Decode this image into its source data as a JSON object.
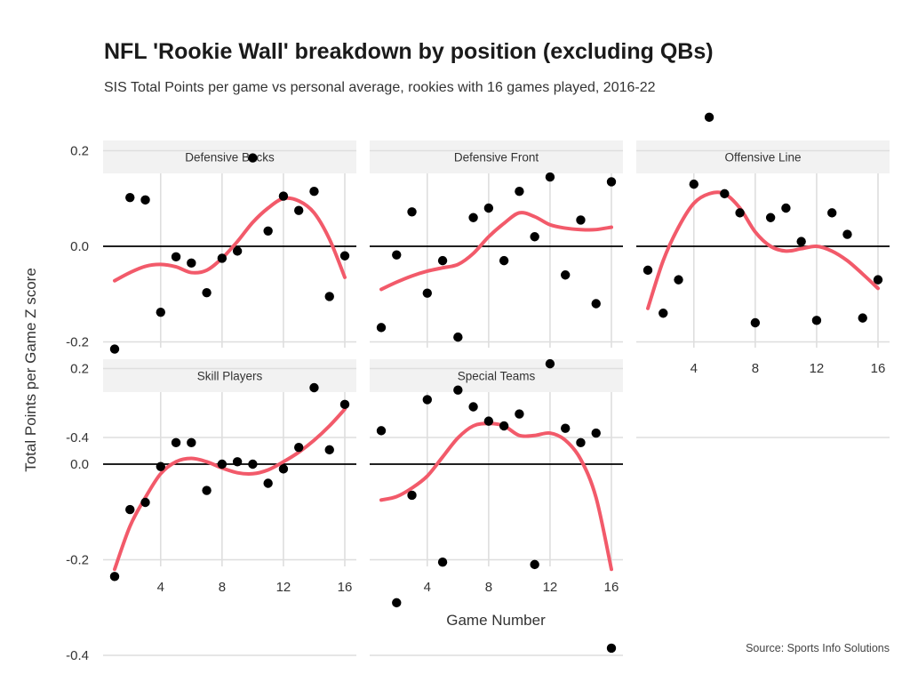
{
  "title": "NFL 'Rookie Wall' breakdown by position (excluding QBs)",
  "subtitle": "SIS Total Points per game vs personal average, rookies with 16 games played, 2016-22",
  "source": "Source: Sports Info Solutions",
  "chart_data": {
    "type": "scatter",
    "title": "NFL 'Rookie Wall' breakdown by position (excluding QBs)",
    "subtitle": "SIS Total Points per game vs personal average, rookies with 16 games played, 2016-22",
    "xlabel": "Game Number",
    "ylabel": "Total Points per Game Z score",
    "xlim": [
      0.5,
      16.5
    ],
    "ylim": [
      -0.4,
      0.27
    ],
    "xticks": [
      4,
      8,
      12,
      16
    ],
    "xtick_labels": [
      "4",
      "8",
      "12",
      "16"
    ],
    "yticks": [
      -0.4,
      -0.2,
      0.0,
      0.2
    ],
    "ytick_labels": [
      "-0.4",
      "-0.2",
      "0.0",
      "0.2"
    ],
    "grid": true,
    "colors": {
      "points": "#000000",
      "trend": "#f25a6a",
      "zero_line": "#000000"
    },
    "panels": [
      {
        "name": "Defensive Backs",
        "x": [
          1,
          2,
          3,
          4,
          5,
          6,
          7,
          8,
          9,
          10,
          11,
          12,
          13,
          14,
          15,
          16
        ],
        "y": [
          -0.215,
          0.102,
          0.097,
          -0.138,
          -0.022,
          -0.035,
          -0.097,
          -0.025,
          -0.01,
          0.185,
          0.032,
          0.105,
          0.075,
          0.115,
          -0.105,
          -0.02
        ],
        "trend": [
          -0.072,
          -0.055,
          -0.042,
          -0.038,
          -0.043,
          -0.055,
          -0.05,
          -0.025,
          0.01,
          0.05,
          0.08,
          0.1,
          0.095,
          0.07,
          0.015,
          -0.065
        ]
      },
      {
        "name": "Defensive Front",
        "x": [
          1,
          2,
          3,
          4,
          5,
          6,
          7,
          8,
          9,
          10,
          11,
          12,
          13,
          14,
          15,
          16
        ],
        "y": [
          -0.17,
          -0.018,
          0.072,
          -0.098,
          -0.03,
          -0.19,
          0.06,
          0.08,
          -0.03,
          0.115,
          0.02,
          0.145,
          -0.06,
          0.055,
          -0.12,
          0.135
        ],
        "trend": [
          -0.09,
          -0.075,
          -0.062,
          -0.052,
          -0.045,
          -0.038,
          -0.015,
          0.02,
          0.048,
          0.07,
          0.062,
          0.045,
          0.038,
          0.035,
          0.035,
          0.04
        ]
      },
      {
        "name": "Offensive Line",
        "x": [
          1,
          2,
          3,
          4,
          5,
          6,
          7,
          8,
          9,
          10,
          11,
          12,
          13,
          14,
          15,
          16
        ],
        "y": [
          -0.05,
          -0.14,
          -0.07,
          0.13,
          0.27,
          0.11,
          0.07,
          -0.16,
          0.06,
          0.08,
          0.01,
          -0.155,
          0.07,
          0.025,
          -0.15,
          -0.07
        ],
        "trend": [
          -0.13,
          -0.03,
          0.04,
          0.09,
          0.11,
          0.11,
          0.08,
          0.03,
          0.0,
          -0.01,
          -0.005,
          0.0,
          -0.01,
          -0.03,
          -0.058,
          -0.088
        ]
      },
      {
        "name": "Skill Players",
        "x": [
          1,
          2,
          3,
          4,
          5,
          6,
          7,
          8,
          9,
          10,
          11,
          12,
          13,
          14,
          15,
          16
        ],
        "y": [
          -0.235,
          -0.095,
          -0.08,
          -0.005,
          0.045,
          0.045,
          -0.055,
          0.0,
          0.005,
          0.0,
          -0.04,
          -0.01,
          0.035,
          0.16,
          0.03,
          0.125
        ],
        "trend": [
          -0.22,
          -0.13,
          -0.07,
          -0.02,
          0.005,
          0.012,
          0.005,
          -0.008,
          -0.018,
          -0.02,
          -0.012,
          0.005,
          0.025,
          0.05,
          0.08,
          0.115
        ]
      },
      {
        "name": "Special Teams",
        "x": [
          1,
          2,
          3,
          4,
          5,
          6,
          7,
          8,
          9,
          10,
          11,
          12,
          13,
          14,
          15,
          16
        ],
        "y": [
          0.07,
          -0.29,
          -0.065,
          0.135,
          -0.205,
          0.155,
          0.12,
          0.09,
          0.08,
          0.105,
          -0.21,
          0.21,
          0.075,
          0.045,
          0.065,
          -0.385
        ],
        "trend": [
          -0.075,
          -0.068,
          -0.05,
          -0.025,
          0.015,
          0.055,
          0.08,
          0.085,
          0.08,
          0.06,
          0.06,
          0.065,
          0.05,
          0.01,
          -0.07,
          -0.22
        ]
      }
    ]
  }
}
